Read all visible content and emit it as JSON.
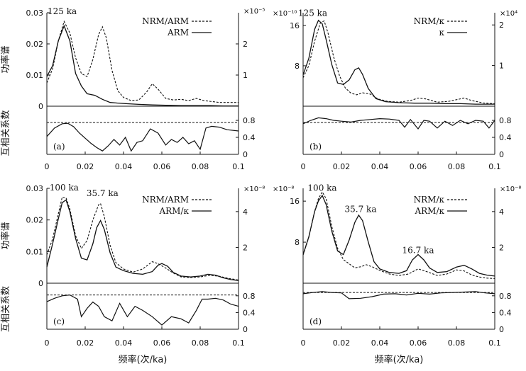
{
  "figure": {
    "xlabel": "频率(次/ka)"
  },
  "chart_data": [
    {
      "type": "line",
      "panel_label": "(a)",
      "ylabel": "功率谱",
      "coh_label": "互相关系数",
      "left_axis": {
        "ticks": [
          0,
          0.01,
          0.02,
          0.03
        ],
        "tick_labels": [
          "0",
          "0.01",
          "0.02",
          "0.03"
        ],
        "ylim": [
          0,
          0.03
        ]
      },
      "right_axis": {
        "multiplier": "×10⁻⁵",
        "ticks": [
          1,
          2
        ],
        "tick_labels": [
          "1",
          "2"
        ],
        "ylim": [
          0,
          3
        ]
      },
      "coh_axis": {
        "ticks": [
          0,
          0.4,
          0.8
        ],
        "tick_labels": [
          "0",
          "0.4",
          "0.8"
        ],
        "ylim": [
          0,
          1
        ],
        "confidence": 0.75
      },
      "x_axis": {
        "ticks": [
          0,
          0.02,
          0.04,
          0.06,
          0.08,
          0.1
        ],
        "tick_labels": [
          "0",
          "0.02",
          "0.04",
          "0.06",
          "0.08",
          "0.1"
        ],
        "xlim": [
          0,
          0.1
        ]
      },
      "legend": [
        {
          "label": "NRM/ARM",
          "style": "dashed"
        },
        {
          "label": "ARM",
          "style": "solid"
        }
      ],
      "annotations": [
        {
          "text": "125 ka",
          "x": 0.008,
          "y": 0.0295
        }
      ],
      "series": [
        {
          "name": "NRM/ARM",
          "axis": "right",
          "style": "dashed",
          "x": [
            0,
            0.003,
            0.006,
            0.009,
            0.012,
            0.015,
            0.018,
            0.021,
            0.024,
            0.027,
            0.029,
            0.031,
            0.034,
            0.037,
            0.04,
            0.044,
            0.048,
            0.052,
            0.055,
            0.058,
            0.062,
            0.066,
            0.07,
            0.074,
            0.078,
            0.082,
            0.086,
            0.09,
            0.094,
            0.1
          ],
          "y": [
            0.75,
            1.2,
            2.1,
            2.72,
            2.35,
            1.55,
            1.05,
            0.95,
            1.5,
            2.3,
            2.55,
            2.2,
            1.15,
            0.5,
            0.28,
            0.18,
            0.2,
            0.45,
            0.72,
            0.55,
            0.25,
            0.2,
            0.22,
            0.18,
            0.25,
            0.18,
            0.15,
            0.12,
            0.12,
            0.12
          ]
        },
        {
          "name": "ARM",
          "axis": "left",
          "style": "solid",
          "x": [
            0,
            0.003,
            0.006,
            0.009,
            0.012,
            0.015,
            0.018,
            0.021,
            0.025,
            0.029,
            0.033,
            0.037,
            0.042,
            0.048,
            0.055,
            0.062,
            0.07,
            0.078,
            0.085,
            0.092,
            0.1
          ],
          "y": [
            0.0095,
            0.013,
            0.021,
            0.0258,
            0.021,
            0.0105,
            0.0065,
            0.004,
            0.0035,
            0.0022,
            0.0012,
            0.001,
            0.0008,
            0.0006,
            0.0004,
            0.0003,
            0.0002,
            0.0002,
            0.0002,
            0.0001,
            0.0001
          ]
        }
      ],
      "coherence": {
        "x": [
          0,
          0.004,
          0.008,
          0.011,
          0.014,
          0.017,
          0.02,
          0.023,
          0.026,
          0.029,
          0.032,
          0.035,
          0.038,
          0.041,
          0.044,
          0.047,
          0.05,
          0.054,
          0.058,
          0.062,
          0.065,
          0.068,
          0.071,
          0.074,
          0.077,
          0.08,
          0.083,
          0.086,
          0.09,
          0.094,
          0.1
        ],
        "y": [
          0.42,
          0.62,
          0.72,
          0.73,
          0.65,
          0.5,
          0.38,
          0.26,
          0.16,
          0.08,
          0.2,
          0.35,
          0.22,
          0.4,
          0.08,
          0.28,
          0.32,
          0.6,
          0.5,
          0.22,
          0.35,
          0.28,
          0.4,
          0.25,
          0.32,
          0.12,
          0.62,
          0.66,
          0.64,
          0.58,
          0.55
        ]
      }
    },
    {
      "type": "line",
      "panel_label": "(b)",
      "left_axis": {
        "multiplier": "×10⁻¹⁰",
        "ticks": [
          8,
          16
        ],
        "tick_labels": [
          "8",
          "16"
        ],
        "ylim": [
          0,
          18.5
        ]
      },
      "right_axis": {
        "multiplier": "×10⁴",
        "ticks": [
          1,
          2
        ],
        "tick_labels": [
          "1",
          "2"
        ],
        "ylim": [
          0,
          2.3
        ]
      },
      "coh_axis": {
        "ticks": [
          0,
          0.4,
          0.8
        ],
        "tick_labels": [
          "0",
          "0.4",
          "0.8"
        ],
        "ylim": [
          0,
          1
        ],
        "confidence": 0.75
      },
      "x_axis": {
        "ticks": [
          0,
          0.02,
          0.04,
          0.06,
          0.08,
          0.1
        ],
        "tick_labels": [
          "0",
          "0.02",
          "0.04",
          "0.06",
          "0.08",
          "0.1"
        ],
        "xlim": [
          0,
          0.1
        ]
      },
      "legend": [
        {
          "label": "NRM/κ",
          "style": "dashed"
        },
        {
          "label": "κ",
          "style": "solid"
        }
      ],
      "annotations": [
        {
          "text": "125 ka",
          "x": 0.005,
          "y": 17.9
        }
      ],
      "series": [
        {
          "name": "NRM/κ",
          "axis": "right",
          "style": "dashed",
          "x": [
            0,
            0.003,
            0.006,
            0.009,
            0.011,
            0.013,
            0.016,
            0.019,
            0.022,
            0.025,
            0.028,
            0.031,
            0.035,
            0.039,
            0.044,
            0.05,
            0.056,
            0.06,
            0.064,
            0.07,
            0.076,
            0.08,
            0.084,
            0.088,
            0.094,
            0.1
          ],
          "y": [
            0.7,
            1.0,
            1.6,
            2.05,
            2.1,
            1.8,
            1.2,
            0.75,
            0.45,
            0.32,
            0.28,
            0.33,
            0.3,
            0.18,
            0.12,
            0.1,
            0.14,
            0.2,
            0.18,
            0.1,
            0.12,
            0.16,
            0.2,
            0.14,
            0.08,
            0.06
          ]
        },
        {
          "name": "κ",
          "axis": "left",
          "style": "solid",
          "x": [
            0,
            0.003,
            0.006,
            0.008,
            0.01,
            0.012,
            0.015,
            0.018,
            0.021,
            0.024,
            0.027,
            0.029,
            0.031,
            0.034,
            0.038,
            0.043,
            0.05,
            0.058,
            0.066,
            0.074,
            0.082,
            0.09,
            0.1
          ],
          "y": [
            6.2,
            9.5,
            15.2,
            17.0,
            16.3,
            13.2,
            8.2,
            4.6,
            4.3,
            5.2,
            7.2,
            7.6,
            6.3,
            3.5,
            1.5,
            0.9,
            0.7,
            0.6,
            0.6,
            0.5,
            0.5,
            0.4,
            0.4
          ]
        }
      ],
      "coherence": {
        "x": [
          0,
          0.004,
          0.008,
          0.012,
          0.016,
          0.02,
          0.025,
          0.03,
          0.035,
          0.04,
          0.045,
          0.05,
          0.053,
          0.056,
          0.06,
          0.063,
          0.066,
          0.07,
          0.074,
          0.078,
          0.082,
          0.086,
          0.09,
          0.094,
          0.097,
          0.1
        ],
        "y": [
          0.72,
          0.8,
          0.86,
          0.84,
          0.8,
          0.78,
          0.76,
          0.8,
          0.82,
          0.84,
          0.83,
          0.8,
          0.64,
          0.82,
          0.6,
          0.8,
          0.78,
          0.62,
          0.78,
          0.68,
          0.8,
          0.72,
          0.8,
          0.78,
          0.62,
          0.8
        ]
      }
    },
    {
      "type": "line",
      "panel_label": "(c)",
      "ylabel": "功率谱",
      "coh_label": "互相关系数",
      "left_axis": {
        "ticks": [
          0,
          0.01,
          0.02,
          0.03
        ],
        "tick_labels": [
          "0",
          "0.01",
          "0.02",
          "0.03"
        ],
        "ylim": [
          0,
          0.03
        ]
      },
      "right_axis": {
        "multiplier": "×10⁻⁸",
        "ticks": [
          2,
          4
        ],
        "tick_labels": [
          "2",
          "4"
        ],
        "ylim": [
          0,
          5.3
        ]
      },
      "coh_axis": {
        "ticks": [
          0,
          0.4,
          0.8
        ],
        "tick_labels": [
          "0",
          "0.4",
          "0.8"
        ],
        "ylim": [
          0,
          1
        ],
        "confidence": 0.82
      },
      "x_axis": {
        "ticks": [
          0,
          0.02,
          0.04,
          0.06,
          0.08,
          0.1
        ],
        "tick_labels": [
          "0",
          "0.02",
          "0.04",
          "0.06",
          "0.08",
          "0.1"
        ],
        "xlim": [
          0,
          0.1
        ]
      },
      "legend": [
        {
          "label": "NRM/ARM",
          "style": "dashed"
        },
        {
          "label": "ARM/κ",
          "style": "solid"
        }
      ],
      "annotations": [
        {
          "text": "100 ka",
          "x": 0.009,
          "y": 0.0293
        },
        {
          "text": "35.7 ka",
          "x": 0.029,
          "y": 0.0275
        }
      ],
      "series": [
        {
          "name": "NRM/ARM",
          "axis": "left",
          "style": "dashed",
          "x": [
            0,
            0.003,
            0.006,
            0.008,
            0.01,
            0.012,
            0.015,
            0.018,
            0.021,
            0.024,
            0.027,
            0.028,
            0.03,
            0.033,
            0.036,
            0.04,
            0.045,
            0.05,
            0.055,
            0.058,
            0.062,
            0.066,
            0.07,
            0.075,
            0.08,
            0.085,
            0.09,
            0.095,
            0.1
          ],
          "y": [
            0.009,
            0.014,
            0.022,
            0.0272,
            0.027,
            0.0235,
            0.015,
            0.011,
            0.0135,
            0.02,
            0.0248,
            0.0252,
            0.021,
            0.012,
            0.0065,
            0.0045,
            0.0035,
            0.0045,
            0.0068,
            0.0062,
            0.0048,
            0.0032,
            0.002,
            0.0018,
            0.002,
            0.0025,
            0.0022,
            0.0015,
            0.001
          ]
        },
        {
          "name": "ARM/κ",
          "axis": "right",
          "style": "solid",
          "x": [
            0,
            0.003,
            0.006,
            0.008,
            0.01,
            0.012,
            0.015,
            0.018,
            0.021,
            0.024,
            0.026,
            0.028,
            0.03,
            0.033,
            0.036,
            0.04,
            0.045,
            0.05,
            0.055,
            0.058,
            0.06,
            0.063,
            0.066,
            0.07,
            0.075,
            0.08,
            0.084,
            0.088,
            0.092,
            0.096,
            0.1
          ],
          "y": [
            0.9,
            2.2,
            3.6,
            4.5,
            4.65,
            4.0,
            2.5,
            1.4,
            1.3,
            2.2,
            3.1,
            3.5,
            3.0,
            1.7,
            0.9,
            0.7,
            0.55,
            0.5,
            0.65,
            1.0,
            1.1,
            0.95,
            0.6,
            0.4,
            0.35,
            0.4,
            0.5,
            0.45,
            0.3,
            0.2,
            0.15
          ]
        }
      ],
      "coherence": {
        "x": [
          0,
          0.004,
          0.008,
          0.012,
          0.016,
          0.018,
          0.021,
          0.024,
          0.027,
          0.03,
          0.034,
          0.038,
          0.042,
          0.046,
          0.05,
          0.055,
          0.06,
          0.065,
          0.07,
          0.074,
          0.078,
          0.081,
          0.084,
          0.088,
          0.092,
          0.096,
          0.1
        ],
        "y": [
          0.66,
          0.74,
          0.8,
          0.82,
          0.72,
          0.3,
          0.5,
          0.65,
          0.55,
          0.3,
          0.2,
          0.62,
          0.3,
          0.55,
          0.45,
          0.3,
          0.1,
          0.3,
          0.25,
          0.15,
          0.45,
          0.72,
          0.72,
          0.74,
          0.7,
          0.6,
          0.55
        ]
      }
    },
    {
      "type": "line",
      "panel_label": "(d)",
      "left_axis": {
        "multiplier": "×10⁻⁸",
        "ticks": [
          8,
          16
        ],
        "tick_labels": [
          "8",
          "16"
        ],
        "ylim": [
          0,
          18.5
        ]
      },
      "right_axis": {
        "multiplier": "×10⁻⁸",
        "ticks": [
          2,
          4
        ],
        "tick_labels": [
          "2",
          "4"
        ],
        "ylim": [
          0,
          5.3
        ]
      },
      "coh_axis": {
        "ticks": [
          0,
          0.4,
          0.8
        ],
        "tick_labels": [
          "0",
          "0.4",
          "0.8"
        ],
        "ylim": [
          0,
          1
        ],
        "confidence": 0.88
      },
      "x_axis": {
        "ticks": [
          0,
          0.02,
          0.04,
          0.06,
          0.08,
          0.1
        ],
        "tick_labels": [
          "0",
          "0.02",
          "0.04",
          "0.06",
          "0.08",
          "0.1"
        ],
        "xlim": [
          0,
          0.1
        ]
      },
      "legend": [
        {
          "label": "NRM/κ",
          "style": "dashed"
        },
        {
          "label": "ARM/κ",
          "style": "solid"
        }
      ],
      "annotations": [
        {
          "text": "100 ka",
          "x": 0.01,
          "y": 18.0
        },
        {
          "text": "35.7 ka",
          "x": 0.03,
          "y": 13.9
        },
        {
          "text": "16.7 ka",
          "x": 0.06,
          "y": 5.9
        }
      ],
      "series": [
        {
          "name": "NRM/κ",
          "axis": "left",
          "style": "dashed",
          "x": [
            0,
            0.003,
            0.006,
            0.008,
            0.01,
            0.012,
            0.015,
            0.018,
            0.021,
            0.024,
            0.027,
            0.03,
            0.033,
            0.036,
            0.04,
            0.045,
            0.05,
            0.055,
            0.06,
            0.065,
            0.07,
            0.075,
            0.08,
            0.084,
            0.088,
            0.092,
            0.096,
            0.1
          ],
          "y": [
            5.5,
            9.0,
            14.0,
            16.5,
            17.8,
            16.5,
            11.0,
            6.8,
            4.6,
            3.8,
            3.0,
            3.2,
            3.6,
            3.2,
            2.5,
            1.8,
            1.5,
            1.8,
            2.8,
            2.2,
            1.5,
            1.8,
            2.6,
            2.4,
            1.6,
            1.2,
            1.0,
            0.9
          ]
        },
        {
          "name": "ARM/κ",
          "axis": "right",
          "style": "solid",
          "x": [
            0,
            0.003,
            0.006,
            0.008,
            0.01,
            0.012,
            0.015,
            0.018,
            0.021,
            0.024,
            0.027,
            0.029,
            0.031,
            0.034,
            0.037,
            0.04,
            0.045,
            0.05,
            0.054,
            0.057,
            0.06,
            0.063,
            0.066,
            0.07,
            0.075,
            0.08,
            0.084,
            0.088,
            0.092,
            0.096,
            0.1
          ],
          "y": [
            1.6,
            2.6,
            4.0,
            4.6,
            4.9,
            4.4,
            2.9,
            1.8,
            1.6,
            2.4,
            3.4,
            3.8,
            3.5,
            2.3,
            1.2,
            0.8,
            0.6,
            0.55,
            0.7,
            1.3,
            1.6,
            1.3,
            0.85,
            0.6,
            0.65,
            0.9,
            1.0,
            0.8,
            0.55,
            0.45,
            0.4
          ]
        }
      ],
      "coherence": {
        "x": [
          0,
          0.005,
          0.01,
          0.015,
          0.02,
          0.024,
          0.03,
          0.036,
          0.042,
          0.048,
          0.054,
          0.06,
          0.066,
          0.072,
          0.078,
          0.084,
          0.09,
          0.095,
          0.1
        ],
        "y": [
          0.85,
          0.88,
          0.9,
          0.88,
          0.87,
          0.73,
          0.74,
          0.78,
          0.84,
          0.85,
          0.82,
          0.86,
          0.84,
          0.87,
          0.88,
          0.89,
          0.9,
          0.87,
          0.85
        ]
      }
    }
  ]
}
